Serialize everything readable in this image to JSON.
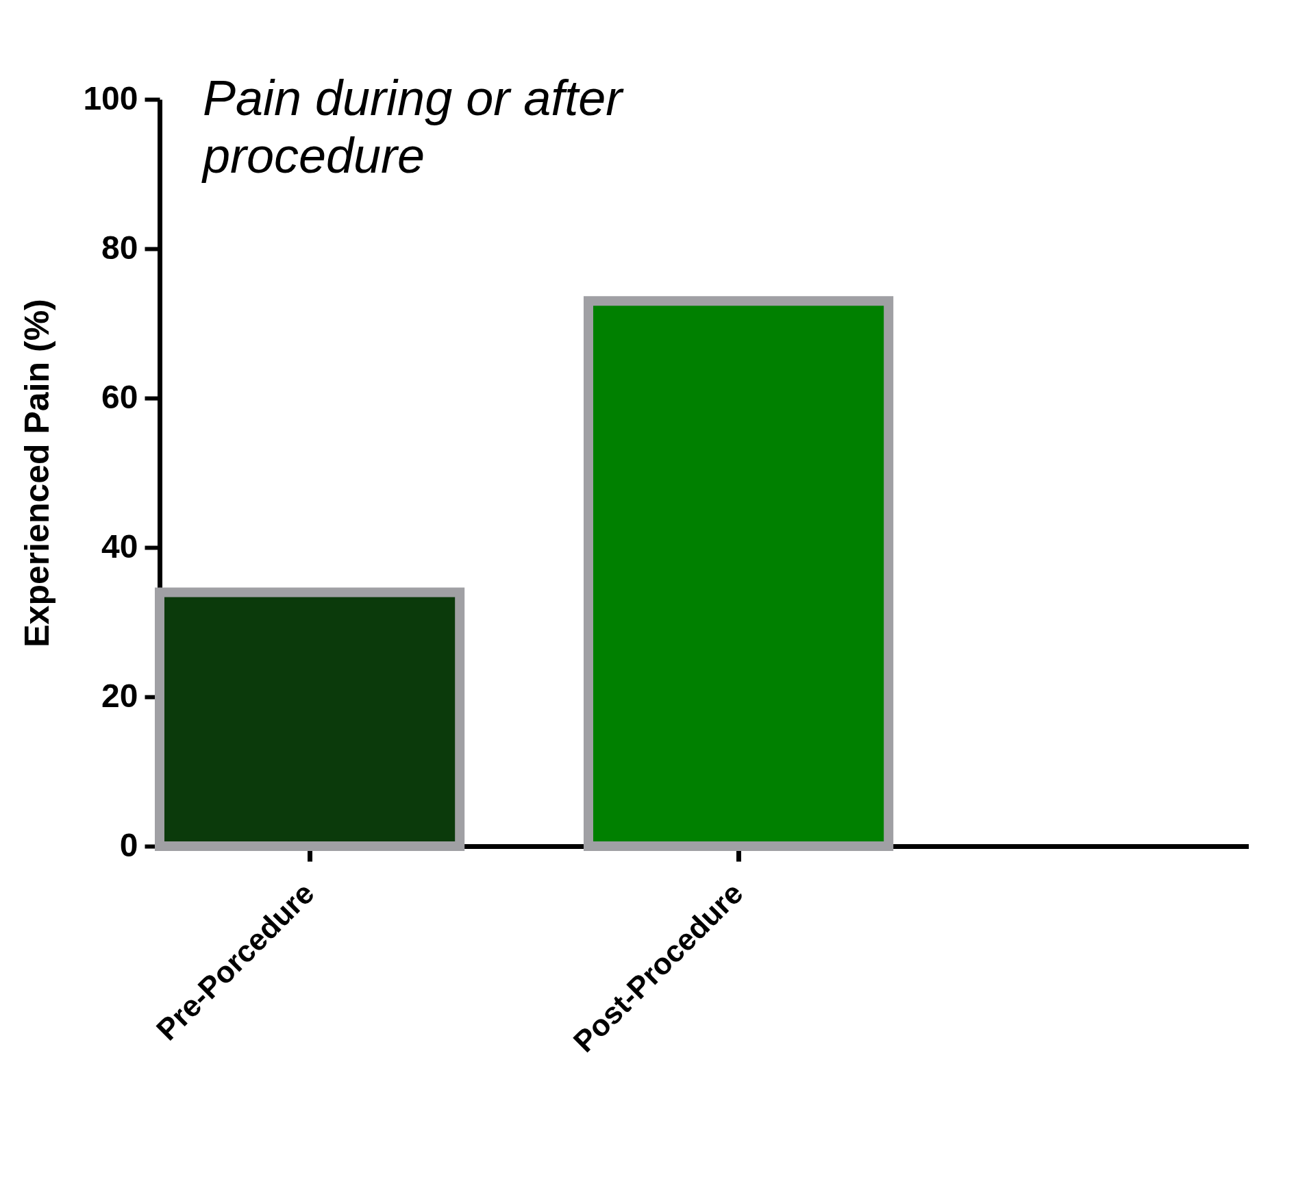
{
  "chart_data": {
    "type": "bar",
    "title": "Pain during or after procedure",
    "ylabel": "Experienced Pain (%)",
    "categories": [
      "Pre-Porcedure",
      "Post-Procedure"
    ],
    "values": [
      34,
      73
    ],
    "colors": [
      "#0b3a0b",
      "#008000"
    ],
    "ylim": [
      0,
      100
    ],
    "yticks": [
      0,
      20,
      40,
      60,
      80,
      100
    ],
    "grid": false,
    "legend": false
  }
}
